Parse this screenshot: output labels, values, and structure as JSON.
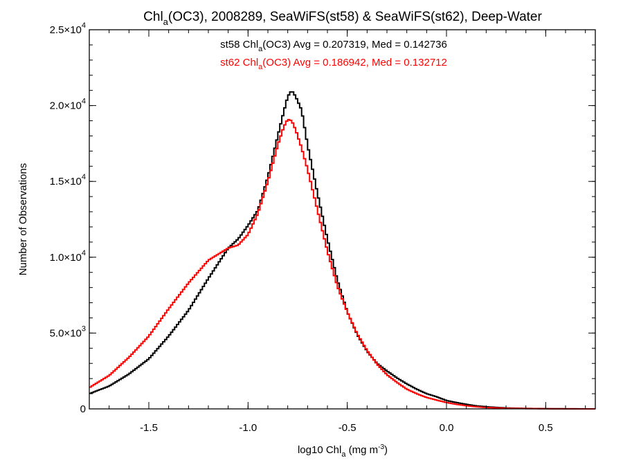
{
  "chart_data": {
    "type": "line",
    "title": {
      "pre": "Chl",
      "sub": "a",
      "post": "(OC3), 2008289, SeaWiFS(st58) & SeaWiFS(st62), Deep-Water"
    },
    "xlabel": {
      "pre": "log10 Chl",
      "sub": "a",
      "mid": " (mg m",
      "sup": "-3",
      "post": ")"
    },
    "ylabel": "Number of Observations",
    "xlim": [
      -1.8,
      0.75
    ],
    "ylim": [
      0,
      25000
    ],
    "x_ticks": [
      {
        "value": -1.5,
        "label": "-1.5"
      },
      {
        "value": -1.0,
        "label": "-1.0"
      },
      {
        "value": -0.5,
        "label": "-0.5"
      },
      {
        "value": 0.0,
        "label": "0.0"
      },
      {
        "value": 0.5,
        "label": "0.5"
      }
    ],
    "y_ticks": [
      {
        "value": 0,
        "mant": "0",
        "exp": ""
      },
      {
        "value": 5000,
        "mant": "5.0×10",
        "exp": "3"
      },
      {
        "value": 10000,
        "mant": "1.0×10",
        "exp": "4"
      },
      {
        "value": 15000,
        "mant": "1.5×10",
        "exp": "4"
      },
      {
        "value": 20000,
        "mant": "2.0×10",
        "exp": "4"
      },
      {
        "value": 25000,
        "mant": "2.5×10",
        "exp": "4"
      }
    ],
    "legend": [
      {
        "pre": "st58 Chl",
        "sub": "a",
        "post": "(OC3) Avg = 0.207319, Med = 0.142736",
        "color": "#000000"
      },
      {
        "pre": "st62 Chl",
        "sub": "a",
        "post": "(OC3) Avg = 0.186942, Med = 0.132712",
        "color": "#ff0000"
      }
    ],
    "series": [
      {
        "color": "#000000",
        "x": [
          -1.8,
          -1.7,
          -1.6,
          -1.5,
          -1.4,
          -1.3,
          -1.2,
          -1.1,
          -1.05,
          -1.0,
          -0.95,
          -0.9,
          -0.85,
          -0.82,
          -0.8,
          -0.78,
          -0.76,
          -0.73,
          -0.7,
          -0.65,
          -0.6,
          -0.55,
          -0.5,
          -0.45,
          -0.4,
          -0.35,
          -0.3,
          -0.25,
          -0.2,
          -0.15,
          -0.1,
          -0.05,
          0.0,
          0.05,
          0.1,
          0.15,
          0.2,
          0.3,
          0.4,
          0.5,
          0.6,
          0.75
        ],
        "y": [
          1000,
          1500,
          2300,
          3300,
          4800,
          6500,
          8600,
          10600,
          11200,
          12100,
          13100,
          15300,
          18000,
          19600,
          20600,
          21000,
          20600,
          19700,
          17400,
          14200,
          11200,
          8500,
          6400,
          4900,
          3800,
          3000,
          2500,
          2050,
          1650,
          1300,
          1000,
          800,
          550,
          420,
          300,
          200,
          140,
          60,
          30,
          15,
          8,
          0
        ]
      },
      {
        "color": "#ff0000",
        "x": [
          -1.8,
          -1.7,
          -1.6,
          -1.5,
          -1.4,
          -1.3,
          -1.2,
          -1.1,
          -1.05,
          -1.0,
          -0.95,
          -0.9,
          -0.85,
          -0.82,
          -0.8,
          -0.78,
          -0.76,
          -0.73,
          -0.7,
          -0.65,
          -0.6,
          -0.55,
          -0.5,
          -0.45,
          -0.4,
          -0.35,
          -0.3,
          -0.25,
          -0.2,
          -0.15,
          -0.1,
          -0.05,
          0.0,
          0.05,
          0.1,
          0.15,
          0.2,
          0.3,
          0.4,
          0.5,
          0.6,
          0.75
        ],
        "y": [
          1400,
          2200,
          3400,
          4800,
          6600,
          8300,
          9800,
          10600,
          10800,
          11500,
          12900,
          15000,
          17400,
          18600,
          19100,
          19000,
          18400,
          17200,
          15800,
          13100,
          10400,
          8100,
          6400,
          4950,
          3850,
          2950,
          2250,
          1750,
          1300,
          1000,
          750,
          580,
          420,
          300,
          210,
          140,
          90,
          40,
          20,
          10,
          5,
          0
        ]
      }
    ]
  }
}
